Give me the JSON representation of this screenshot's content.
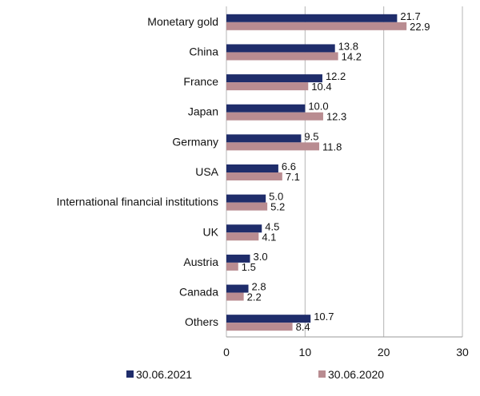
{
  "chart_data": {
    "type": "bar",
    "orientation": "horizontal",
    "categories": [
      "Monetary gold",
      "China",
      "France",
      "Japan",
      "Germany",
      "USA",
      "International financial institutions",
      "UK",
      "Austria",
      "Canada",
      "Others"
    ],
    "series": [
      {
        "name": "30.06.2021",
        "values": [
          21.7,
          13.8,
          12.2,
          10.0,
          9.5,
          6.6,
          5.0,
          4.5,
          3.0,
          2.8,
          10.7
        ],
        "labels": [
          "21.7",
          "13.8",
          "12.2",
          "10.0",
          "9.5",
          "6.6",
          "5.0",
          "4.5",
          "3.0",
          "2.8",
          "10.7"
        ],
        "color": "#1f2d6b"
      },
      {
        "name": "30.06.2020",
        "values": [
          22.9,
          14.2,
          10.4,
          12.3,
          11.8,
          7.1,
          5.2,
          4.1,
          1.5,
          2.2,
          8.4
        ],
        "labels": [
          "22.9",
          "14.2",
          "10.4",
          "12.3",
          "11.8",
          "7.1",
          "5.2",
          "4.1",
          "1.5",
          "2.2",
          "8.4"
        ],
        "color": "#b98c91"
      }
    ],
    "xlim": [
      0,
      30
    ],
    "xticks": [
      "0",
      "10",
      "20",
      "30"
    ],
    "grid": true,
    "legend": "bottom"
  }
}
